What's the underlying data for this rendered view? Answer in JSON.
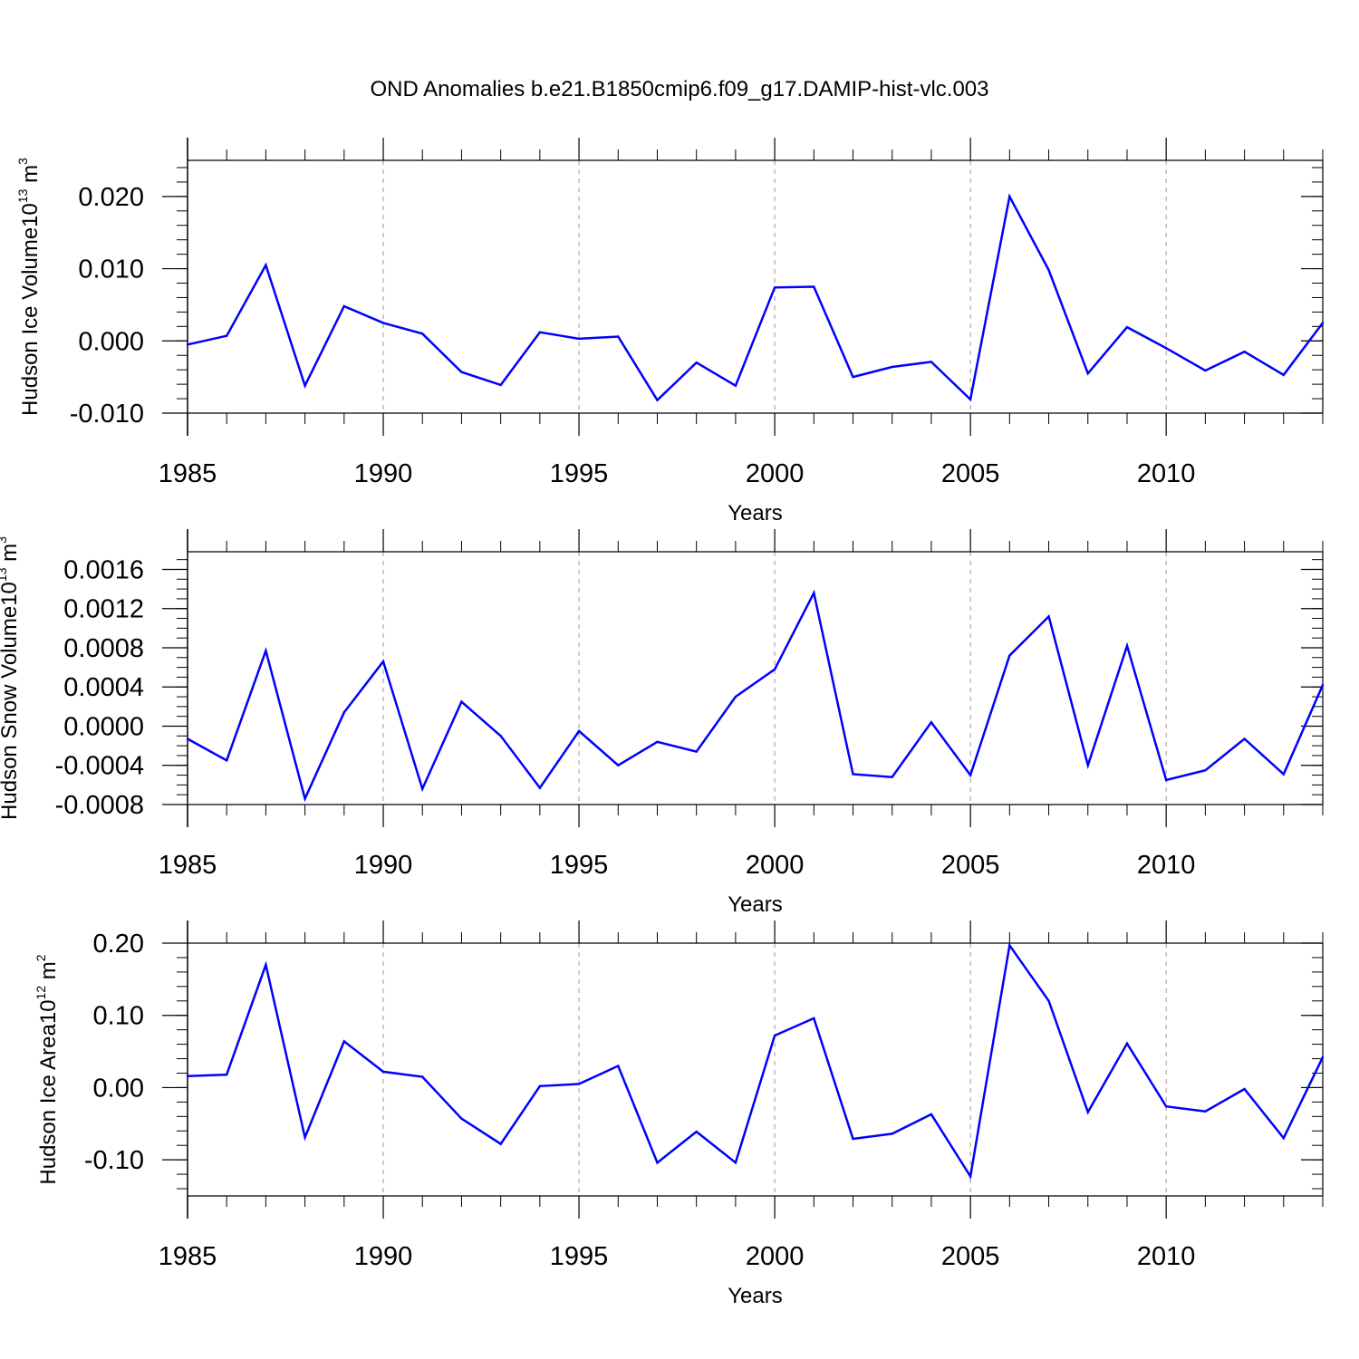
{
  "title": "OND Anomalies b.e21.B1850cmip6.f09_g17.DAMIP-hist-vlc.003",
  "colors": {
    "series": "#0000ff",
    "axis": "#000000",
    "grid": "#9a9a9a"
  },
  "chart_data": [
    {
      "type": "line",
      "ylabel": "Hudson Ice Volume",
      "yunit": {
        "base": "10",
        "exp": "13",
        "unit": "m",
        "unit_exp": "3"
      },
      "xlabel": "Years",
      "xlim": [
        1985,
        2014
      ],
      "ylim": [
        -0.01,
        0.025
      ],
      "x_ticks": [
        1985,
        1990,
        1995,
        2000,
        2005,
        2010
      ],
      "x_tick_labels": [
        "1985",
        "1990",
        "1995",
        "2000",
        "2005",
        "2010"
      ],
      "y_ticks": [
        -0.01,
        0.0,
        0.01,
        0.02
      ],
      "y_tick_labels": [
        "-0.010",
        "0.000",
        "0.010",
        "0.020"
      ],
      "y_minor_step": 0.002,
      "grid_x": [
        1990,
        1995,
        2000,
        2005,
        2010
      ],
      "x": [
        1985,
        1986,
        1987,
        1988,
        1989,
        1990,
        1991,
        1992,
        1993,
        1994,
        1995,
        1996,
        1997,
        1998,
        1999,
        2000,
        2001,
        2002,
        2003,
        2004,
        2005,
        2006,
        2007,
        2008,
        2009,
        2010,
        2011,
        2012,
        2013,
        2014
      ],
      "values": [
        -0.0005,
        0.0007,
        0.0105,
        -0.0062,
        0.0048,
        0.0025,
        0.001,
        -0.0043,
        -0.0061,
        0.0012,
        0.0003,
        0.0006,
        -0.0082,
        -0.003,
        -0.0062,
        0.0074,
        0.0075,
        -0.005,
        -0.0036,
        -0.0029,
        -0.0081,
        0.02,
        0.0098,
        -0.0045,
        0.0019,
        -0.001,
        -0.0041,
        -0.0015,
        -0.0047,
        0.0025
      ]
    },
    {
      "type": "line",
      "ylabel": "Hudson Snow Volume",
      "yunit": {
        "base": "10",
        "exp": "13",
        "unit": "m",
        "unit_exp": "3"
      },
      "xlabel": "Years",
      "xlim": [
        1985,
        2014
      ],
      "ylim": [
        -0.0008,
        0.00178
      ],
      "x_ticks": [
        1985,
        1990,
        1995,
        2000,
        2005,
        2010
      ],
      "x_tick_labels": [
        "1985",
        "1990",
        "1995",
        "2000",
        "2005",
        "2010"
      ],
      "y_ticks": [
        -0.0008,
        -0.0004,
        0.0,
        0.0004,
        0.0008,
        0.0012,
        0.0016
      ],
      "y_tick_labels": [
        "-0.0008",
        "-0.0004",
        "0.0000",
        "0.0004",
        "0.0008",
        "0.0012",
        "0.0016"
      ],
      "y_minor_step": 0.0001,
      "grid_x": [
        1990,
        1995,
        2000,
        2005,
        2010
      ],
      "x": [
        1985,
        1986,
        1987,
        1988,
        1989,
        1990,
        1991,
        1992,
        1993,
        1994,
        1995,
        1996,
        1997,
        1998,
        1999,
        2000,
        2001,
        2002,
        2003,
        2004,
        2005,
        2006,
        2007,
        2008,
        2009,
        2010,
        2011,
        2012,
        2013,
        2014
      ],
      "values": [
        -0.00013,
        -0.00035,
        0.00077,
        -0.00074,
        0.00014,
        0.00066,
        -0.00064,
        0.00025,
        -0.0001,
        -0.00063,
        -5e-05,
        -0.0004,
        -0.00016,
        -0.00026,
        0.0003,
        0.00058,
        0.00136,
        -0.00049,
        -0.00052,
        4e-05,
        -0.0005,
        0.00072,
        0.00112,
        -0.0004,
        0.00082,
        -0.00055,
        -0.00045,
        -0.00013,
        -0.00049,
        0.00042
      ]
    },
    {
      "type": "line",
      "ylabel": "Hudson Ice Area",
      "yunit": {
        "base": "10",
        "exp": "12",
        "unit": "m",
        "unit_exp": "2"
      },
      "xlabel": "Years",
      "xlim": [
        1985,
        2014
      ],
      "ylim": [
        -0.15,
        0.2
      ],
      "x_ticks": [
        1985,
        1990,
        1995,
        2000,
        2005,
        2010
      ],
      "x_tick_labels": [
        "1985",
        "1990",
        "1995",
        "2000",
        "2005",
        "2010"
      ],
      "y_ticks": [
        -0.1,
        0.0,
        0.1,
        0.2
      ],
      "y_tick_labels": [
        "-0.10",
        "0.00",
        "0.10",
        "0.20"
      ],
      "y_minor_step": 0.02,
      "grid_x": [
        1990,
        1995,
        2000,
        2005,
        2010
      ],
      "x": [
        1985,
        1986,
        1987,
        1988,
        1989,
        1990,
        1991,
        1992,
        1993,
        1994,
        1995,
        1996,
        1997,
        1998,
        1999,
        2000,
        2001,
        2002,
        2003,
        2004,
        2005,
        2006,
        2007,
        2008,
        2009,
        2010,
        2011,
        2012,
        2013,
        2014
      ],
      "values": [
        0.016,
        0.018,
        0.17,
        -0.069,
        0.064,
        0.022,
        0.015,
        -0.043,
        -0.078,
        0.002,
        0.005,
        0.03,
        -0.104,
        -0.061,
        -0.104,
        0.072,
        0.096,
        -0.071,
        -0.064,
        -0.037,
        -0.123,
        0.197,
        0.12,
        -0.034,
        0.061,
        -0.026,
        -0.033,
        -0.002,
        -0.07,
        0.042
      ]
    }
  ]
}
